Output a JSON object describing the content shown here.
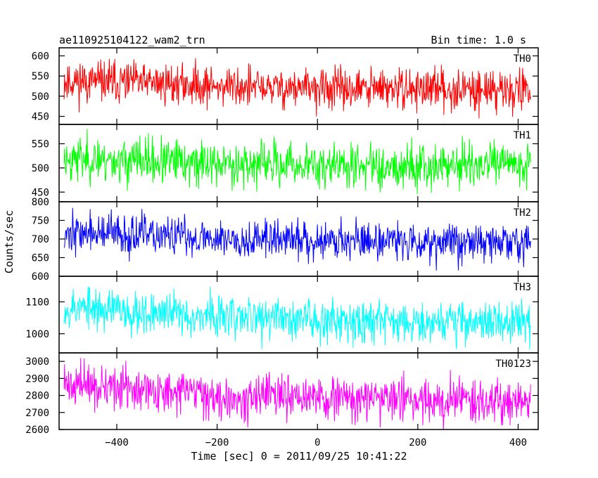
{
  "header": {
    "left_title": "ae110925104122_wam2_trn",
    "right_title": "Bin time: 1.0 s"
  },
  "x_axis": {
    "label": "Time [sec] 0 = 2011/09/25 10:41:22",
    "range": [
      -515,
      440
    ],
    "ticks": [
      -400,
      -200,
      0,
      200,
      400
    ],
    "tick_labels": [
      "−400",
      "−200",
      "0",
      "200",
      "400"
    ]
  },
  "y_axis": {
    "label": "Counts/sec"
  },
  "chart_data": {
    "type": "line",
    "x_start": -505,
    "x_end": 425,
    "bin_time_s": 1.0,
    "series": [
      {
        "name": "TH0",
        "color": "#ff0000",
        "ylim": [
          430,
          620
        ],
        "ticks": [
          450,
          500,
          550,
          600
        ],
        "mean": [
          538,
          532,
          522,
          518,
          518,
          515
        ],
        "noise_sd": 25,
        "seed": 11
      },
      {
        "name": "TH1",
        "color": "#00ff00",
        "ylim": [
          430,
          590
        ],
        "ticks": [
          450,
          500,
          550
        ],
        "mean": [
          520,
          512,
          508,
          505,
          505,
          508
        ],
        "noise_sd": 23,
        "seed": 23
      },
      {
        "name": "TH2",
        "color": "#0000ff",
        "ylim": [
          600,
          800
        ],
        "ticks": [
          600,
          650,
          700,
          750,
          800
        ],
        "mean": [
          718,
          708,
          700,
          697,
          694,
          690
        ],
        "noise_sd": 26,
        "seed": 37
      },
      {
        "name": "TH3",
        "color": "#00ffff",
        "ylim": [
          940,
          1180
        ],
        "ticks": [
          1000,
          1100
        ],
        "mean": [
          1085,
          1065,
          1050,
          1045,
          1040,
          1035
        ],
        "noise_sd": 33,
        "seed": 53
      },
      {
        "name": "TH0123",
        "color": "#ff00ff",
        "ylim": [
          2600,
          3050
        ],
        "ticks": [
          2600,
          2700,
          2800,
          2900,
          3000
        ],
        "mean": [
          2870,
          2820,
          2790,
          2780,
          2775,
          2770
        ],
        "noise_sd": 62,
        "seed": 71
      }
    ]
  }
}
